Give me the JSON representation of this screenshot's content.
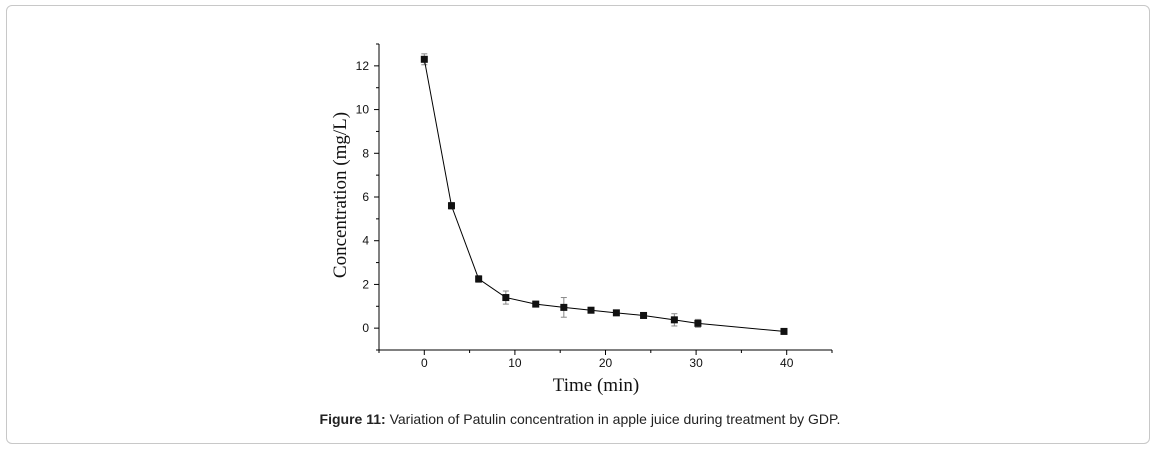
{
  "caption": {
    "label": "Figure 11:",
    "text": " Variation of Patulin concentration in apple juice during treatment by GDP."
  },
  "chart_data": {
    "type": "line",
    "xlabel": "Time (min)",
    "ylabel": "Concentration (mg/L)",
    "xlim": [
      -5,
      45
    ],
    "ylim": [
      -1,
      13
    ],
    "xticks": [
      0,
      10,
      20,
      30,
      40
    ],
    "yticks": [
      0,
      2,
      4,
      6,
      8,
      10,
      12
    ],
    "grid": false,
    "legend": "none",
    "marker": "square",
    "series": [
      {
        "x": [
          0,
          3,
          6,
          9,
          12.3,
          15.4,
          18.4,
          21.2,
          24.2,
          27.6,
          30.2,
          39.7
        ],
        "y": [
          12.3,
          5.6,
          2.25,
          1.4,
          1.1,
          0.95,
          0.82,
          0.7,
          0.58,
          0.38,
          0.22,
          -0.15
        ],
        "err": [
          0.25,
          0.15,
          0.15,
          0.3,
          0.12,
          0.45,
          0.08,
          0.08,
          0.12,
          0.28,
          0.18,
          0.05
        ]
      }
    ],
    "colors": {
      "line": "#000000",
      "marker": "#111111",
      "axis": "#000000",
      "errorbar": "#888888"
    }
  }
}
